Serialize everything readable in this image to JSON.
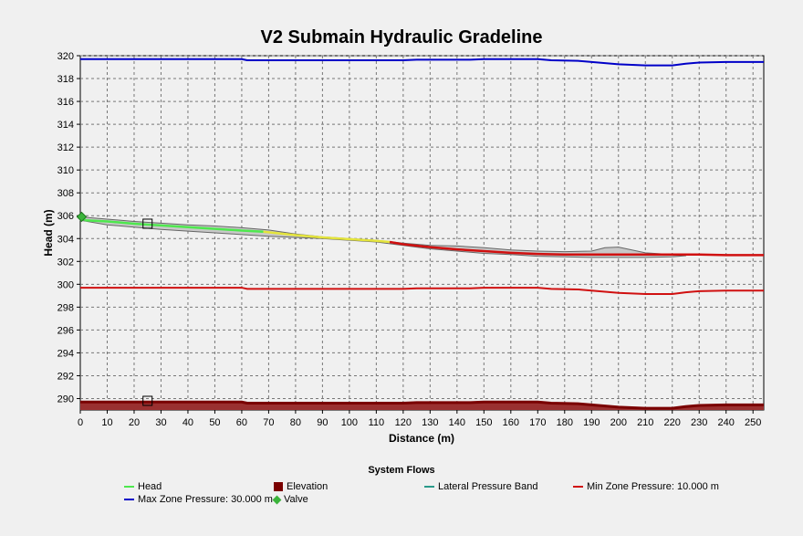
{
  "chart_data": {
    "type": "line",
    "title": "V2 Submain Hydraulic Gradeline",
    "xlabel": "Distance (m)",
    "ylabel": "Head (m)",
    "xlim": [
      0,
      254
    ],
    "ylim": [
      289,
      320
    ],
    "xticks": [
      0,
      10,
      20,
      30,
      40,
      50,
      60,
      70,
      80,
      90,
      100,
      110,
      120,
      130,
      140,
      150,
      160,
      170,
      180,
      190,
      200,
      210,
      220,
      230,
      240,
      250
    ],
    "yticks": [
      290,
      292,
      294,
      296,
      298,
      300,
      302,
      304,
      306,
      308,
      310,
      312,
      314,
      316,
      318,
      320
    ],
    "grid": true,
    "legend_title": "System Flows",
    "legend_position": "bottom",
    "series": [
      {
        "name": "Max Zone Pressure: 30.000 m",
        "color": "#0000c8",
        "x": [
          0,
          60,
          62,
          120,
          125,
          145,
          150,
          170,
          175,
          185,
          190,
          195,
          200,
          205,
          210,
          220,
          225,
          230,
          240,
          254
        ],
        "y": [
          319.7,
          319.7,
          319.6,
          319.6,
          319.65,
          319.65,
          319.7,
          319.7,
          319.6,
          319.55,
          319.45,
          319.35,
          319.25,
          319.2,
          319.15,
          319.15,
          319.3,
          319.4,
          319.45,
          319.45
        ]
      },
      {
        "name": "Min Zone Pressure: 10.000 m",
        "color": "#d01010",
        "x": [
          0,
          60,
          62,
          120,
          125,
          145,
          150,
          170,
          175,
          185,
          190,
          195,
          200,
          205,
          210,
          220,
          225,
          230,
          240,
          254
        ],
        "y": [
          299.7,
          299.7,
          299.6,
          299.6,
          299.65,
          299.65,
          299.7,
          299.7,
          299.6,
          299.55,
          299.45,
          299.35,
          299.25,
          299.2,
          299.15,
          299.15,
          299.3,
          299.4,
          299.45,
          299.45
        ]
      },
      {
        "name": "Elevation",
        "color": "#7a0000",
        "x": [
          0,
          60,
          62,
          120,
          125,
          145,
          150,
          170,
          175,
          185,
          190,
          195,
          200,
          205,
          210,
          220,
          225,
          230,
          240,
          254
        ],
        "y": [
          289.7,
          289.7,
          289.6,
          289.6,
          289.65,
          289.65,
          289.7,
          289.7,
          289.6,
          289.55,
          289.45,
          289.35,
          289.25,
          289.2,
          289.15,
          289.15,
          289.3,
          289.4,
          289.45,
          289.45
        ]
      },
      {
        "name": "Head",
        "color": "#4ee84e",
        "x": [
          0,
          2,
          10,
          20,
          30,
          40,
          50,
          60,
          68
        ],
        "y": [
          305.9,
          305.6,
          305.5,
          305.3,
          305.15,
          305.0,
          304.85,
          304.7,
          304.6
        ]
      },
      {
        "name": "",
        "color": "#e4e43c",
        "x": [
          68,
          80,
          90,
          100,
          110,
          115
        ],
        "y": [
          304.6,
          304.3,
          304.1,
          303.95,
          303.8,
          303.7
        ]
      },
      {
        "name": "",
        "color": "#d01010",
        "x": [
          115,
          120,
          130,
          140,
          150,
          160,
          170,
          180,
          190,
          200,
          210,
          220,
          230,
          240,
          254
        ],
        "y": [
          303.7,
          303.5,
          303.25,
          303.05,
          302.9,
          302.75,
          302.65,
          302.6,
          302.6,
          302.6,
          302.6,
          302.6,
          302.6,
          302.55,
          302.55
        ]
      }
    ],
    "lateral_pressure_band": {
      "name": "Lateral Pressure Band",
      "color": "#2a9a8a",
      "x": [
        0,
        10,
        20,
        30,
        40,
        50,
        60,
        70,
        80,
        90,
        100,
        110,
        120,
        130,
        140,
        150,
        160,
        170,
        180,
        190,
        195,
        200,
        205,
        210,
        220,
        225
      ],
      "upper": [
        305.9,
        305.7,
        305.5,
        305.35,
        305.2,
        305.1,
        304.95,
        304.75,
        304.4,
        304.15,
        304.0,
        303.85,
        303.6,
        303.4,
        303.35,
        303.2,
        303.0,
        302.9,
        302.85,
        302.9,
        303.2,
        303.25,
        303.0,
        302.75,
        302.6,
        302.55
      ],
      "lower": [
        305.6,
        305.2,
        305.0,
        304.8,
        304.65,
        304.5,
        304.35,
        304.2,
        304.1,
        304.0,
        303.85,
        303.7,
        303.4,
        303.1,
        302.9,
        302.7,
        302.6,
        302.45,
        302.4,
        302.35,
        302.35,
        302.35,
        302.35,
        302.35,
        302.4,
        302.5
      ]
    },
    "valves": [
      {
        "x": 0.5,
        "y": 305.9
      }
    ],
    "markers": [
      {
        "x": 25,
        "y": 305.3
      },
      {
        "x": 25,
        "y": 289.8
      }
    ]
  },
  "legend_items": [
    {
      "label": "Head",
      "kind": "line",
      "color": "#4ee84e"
    },
    {
      "label": "Elevation",
      "kind": "box",
      "color": "#7a0000"
    },
    {
      "label": "Lateral Pressure Band",
      "kind": "line",
      "color": "#2a9a8a"
    },
    {
      "label": "Min Zone Pressure: 10.000 m",
      "kind": "line",
      "color": "#d01010"
    },
    {
      "label": "Max Zone Pressure: 30.000 m",
      "kind": "line",
      "color": "#0000c8"
    },
    {
      "label": "Valve",
      "kind": "diamond",
      "color": "#3cb43c"
    }
  ]
}
